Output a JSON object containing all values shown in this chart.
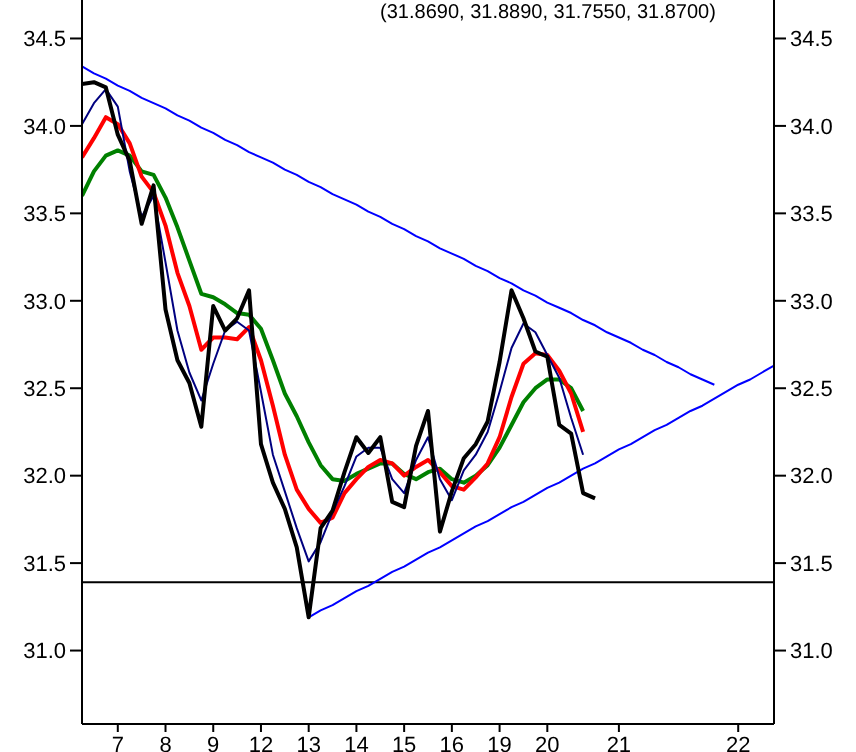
{
  "chart_data": {
    "type": "line",
    "title": "(31.8690, 31.8890, 31.7550, 31.8700)",
    "categories": [
      null,
      null,
      null,
      "7",
      null,
      null,
      null,
      "8",
      null,
      null,
      null,
      "9",
      null,
      null,
      null,
      "12",
      null,
      null,
      null,
      "13",
      null,
      null,
      null,
      "14",
      null,
      null,
      null,
      "15",
      null,
      null,
      null,
      "16",
      null,
      null,
      null,
      "19",
      null,
      null,
      null,
      "20",
      null,
      null,
      null,
      null,
      null,
      "21",
      null,
      null,
      null,
      null,
      null,
      null,
      null,
      null,
      null,
      "22",
      null,
      null,
      null
    ],
    "ylim": [
      30.58,
      34.72
    ],
    "yticks": [
      {
        "value": 31,
        "label": "31.0"
      },
      {
        "value": 31.5,
        "label": "31.5"
      },
      {
        "value": 32,
        "label": "32.0"
      },
      {
        "value": 32.5,
        "label": "32.5"
      },
      {
        "value": 33,
        "label": "33.0"
      },
      {
        "value": 33.5,
        "label": "33.5"
      },
      {
        "value": 34,
        "label": "34.0"
      },
      {
        "value": 34.5,
        "label": "34.5"
      }
    ],
    "y2lim": [
      30.58,
      34.72
    ],
    "y2ticks": [
      {
        "value": 31,
        "label": "31.0"
      },
      {
        "value": 31.5,
        "label": "31.5"
      },
      {
        "value": 32,
        "label": "32.0"
      },
      {
        "value": 32.5,
        "label": "32.5"
      },
      {
        "value": 33,
        "label": "33.0"
      },
      {
        "value": 33.5,
        "label": "33.5"
      },
      {
        "value": 34,
        "label": "34.0"
      },
      {
        "value": 34.5,
        "label": "34.5"
      }
    ],
    "series": [
      {
        "color": "#0000ff",
        "values": [
          34.34,
          34.3,
          34.27,
          34.23,
          34.2,
          34.16,
          34.13,
          34.1,
          34.06,
          34.03,
          33.99,
          33.96,
          33.92,
          33.89,
          33.85,
          33.82,
          33.79,
          33.75,
          33.72,
          33.68,
          33.65,
          33.61,
          33.58,
          33.55,
          33.51,
          33.48,
          33.44,
          33.41,
          33.37,
          33.34,
          33.3,
          33.27,
          33.24,
          33.2,
          33.17,
          33.13,
          33.1,
          33.06,
          33.03,
          32.99,
          32.96,
          32.93,
          32.89,
          32.86,
          32.82,
          32.79,
          32.76,
          32.72,
          32.69,
          32.65,
          32.62,
          32.58,
          32.55,
          32.52,
          null,
          null,
          null,
          null,
          null
        ]
      },
      {
        "color": "#0000ff",
        "values": [
          null,
          null,
          null,
          null,
          null,
          null,
          null,
          null,
          null,
          null,
          null,
          null,
          null,
          null,
          null,
          null,
          null,
          null,
          null,
          31.19,
          31.23,
          31.26,
          31.3,
          31.34,
          31.37,
          31.41,
          31.45,
          31.48,
          31.52,
          31.56,
          31.59,
          31.63,
          31.67,
          31.71,
          31.74,
          31.78,
          31.82,
          31.85,
          31.89,
          31.93,
          31.96,
          32.0,
          32.04,
          32.07,
          32.11,
          32.15,
          32.18,
          32.22,
          32.26,
          32.29,
          32.33,
          32.37,
          32.4,
          32.44,
          32.48,
          32.52,
          32.55,
          32.59,
          32.63
        ]
      },
      {
        "color": "#008000",
        "values": [
          33.6,
          33.74,
          33.83,
          33.86,
          33.83,
          33.74,
          33.72,
          33.59,
          33.42,
          33.23,
          33.04,
          33.02,
          32.98,
          32.93,
          32.92,
          32.84,
          32.66,
          32.47,
          32.34,
          32.19,
          32.06,
          31.98,
          31.97,
          32.01,
          32.04,
          32.07,
          32.07,
          32.01,
          31.98,
          32.02,
          32.04,
          31.98,
          31.96,
          32.0,
          32.06,
          32.16,
          32.29,
          32.42,
          32.5,
          32.55,
          32.55,
          32.5,
          32.37,
          null,
          null,
          null,
          null,
          null,
          null,
          null,
          null,
          null,
          null,
          null,
          null,
          null,
          null,
          null,
          null
        ]
      },
      {
        "color": "#ff0000",
        "values": [
          33.82,
          33.93,
          34.05,
          34.01,
          33.9,
          33.71,
          33.62,
          33.43,
          33.16,
          32.97,
          32.72,
          32.79,
          32.79,
          32.78,
          32.85,
          32.66,
          32.4,
          32.12,
          31.92,
          31.81,
          31.73,
          31.76,
          31.9,
          31.98,
          32.05,
          32.09,
          32.07,
          32.0,
          32.05,
          32.09,
          32.02,
          31.94,
          31.92,
          31.99,
          32.07,
          32.22,
          32.45,
          32.64,
          32.7,
          32.69,
          32.6,
          32.47,
          32.25,
          null,
          null,
          null,
          null,
          null,
          null,
          null,
          null,
          null,
          null,
          null,
          null,
          null,
          null,
          null,
          null
        ]
      },
      {
        "color": "#000080",
        "values": [
          34.01,
          34.13,
          34.21,
          34.11,
          33.74,
          33.48,
          33.6,
          33.22,
          32.83,
          32.59,
          32.43,
          32.64,
          32.83,
          32.88,
          32.83,
          32.48,
          32.12,
          31.91,
          31.7,
          31.51,
          31.62,
          31.79,
          31.94,
          32.11,
          32.16,
          32.16,
          31.98,
          31.9,
          32.09,
          32.22,
          31.98,
          31.86,
          32.03,
          32.12,
          32.25,
          32.48,
          32.73,
          32.87,
          32.82,
          32.69,
          32.56,
          32.33,
          32.12,
          null,
          null,
          null,
          null,
          null,
          null,
          null,
          null,
          null,
          null,
          null,
          null,
          null,
          null,
          null,
          null
        ]
      },
      {
        "color": "#000000",
        "values": [
          34.24,
          34.25,
          34.22,
          33.95,
          33.8,
          33.44,
          33.66,
          32.95,
          32.66,
          32.53,
          32.28,
          32.97,
          32.83,
          32.9,
          33.06,
          32.18,
          31.96,
          31.81,
          31.59,
          31.19,
          31.7,
          31.8,
          32.02,
          32.22,
          32.13,
          32.22,
          31.85,
          31.82,
          32.17,
          32.37,
          31.68,
          31.91,
          32.1,
          32.18,
          32.31,
          32.65,
          33.06,
          32.9,
          32.71,
          32.68,
          32.29,
          32.24,
          31.9,
          31.87,
          null,
          null,
          null,
          null,
          null,
          null,
          null,
          null,
          null,
          null,
          null,
          null,
          null,
          null,
          null
        ]
      }
    ],
    "ref_lines": [
      {
        "axis": "y",
        "value": 31.39,
        "color": "#000000"
      }
    ]
  }
}
